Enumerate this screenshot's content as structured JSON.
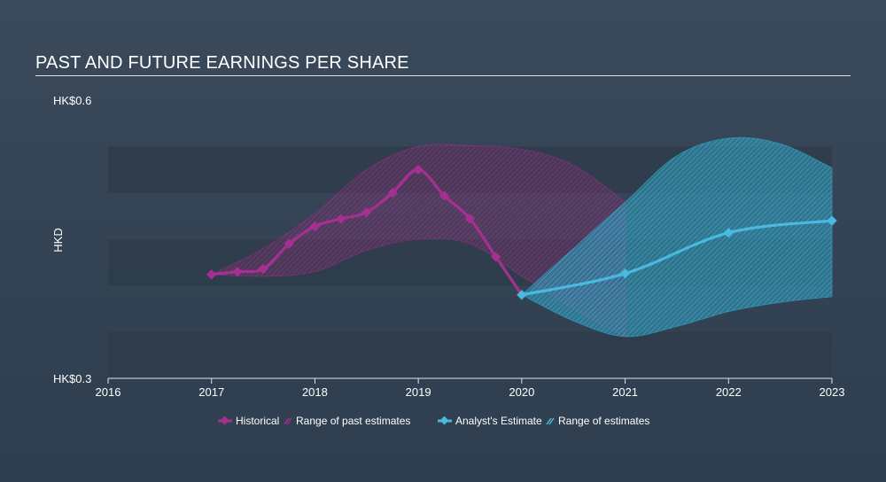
{
  "title": "PAST AND FUTURE EARNINGS PER SHARE",
  "colors": {
    "historical": "#a6308f",
    "historical_band": "#8b2f7e",
    "estimate": "#4ab9e0",
    "estimate_band": "#2f9fbd",
    "grid_band": "#2d3b49",
    "axis": "#dfe6ec"
  },
  "legend": {
    "historical": "Historical",
    "past_range": "Range of past estimates",
    "estimate": "Analyst's Estimate",
    "future_range": "Range of estimates"
  },
  "chart_data": {
    "type": "line",
    "title": "PAST AND FUTURE EARNINGS PER SHARE",
    "ylabel": "HKD",
    "y_tick_labels": [
      "HK$0.6",
      "HK$0.3"
    ],
    "ylim": [
      0.3,
      0.6
    ],
    "xlim": [
      2016,
      2023.0
    ],
    "x_tick_labels": [
      "2016",
      "2017",
      "2018",
      "2019",
      "2020",
      "2021",
      "2022",
      "2023"
    ],
    "x_ticks": [
      2016,
      2017,
      2018,
      2019,
      2020,
      2021,
      2022,
      2023
    ],
    "grid": "horizontal bands",
    "legend_position": "bottom-center",
    "series": [
      {
        "name": "Historical",
        "x": [
          2017.0,
          2017.25,
          2017.5,
          2017.75,
          2018.0,
          2018.25,
          2018.5,
          2018.75,
          2019.0,
          2019.25,
          2019.5,
          2019.75,
          2020.0
        ],
        "values": [
          0.412,
          0.415,
          0.418,
          0.445,
          0.464,
          0.472,
          0.479,
          0.5,
          0.525,
          0.497,
          0.472,
          0.431,
          0.39
        ]
      },
      {
        "name": "Analyst's Estimate",
        "x": [
          2020.0,
          2021.0,
          2022.0,
          2023.0
        ],
        "values": [
          0.39,
          0.413,
          0.457,
          0.47
        ]
      }
    ],
    "bands": [
      {
        "name": "Range of past estimates",
        "x": [
          2017.0,
          2017.5,
          2018.0,
          2018.5,
          2019.0,
          2019.5,
          2020.0,
          2020.5,
          2021.0
        ],
        "upper": [
          0.412,
          0.44,
          0.478,
          0.525,
          0.55,
          0.551,
          0.547,
          0.53,
          0.49
        ],
        "lower": [
          0.412,
          0.41,
          0.415,
          0.438,
          0.45,
          0.445,
          0.41,
          0.375,
          0.345
        ]
      },
      {
        "name": "Range of estimates",
        "x": [
          2020.0,
          2020.5,
          2021.0,
          2021.5,
          2022.0,
          2022.5,
          2023.0
        ],
        "upper": [
          0.39,
          0.44,
          0.49,
          0.54,
          0.559,
          0.553,
          0.527
        ],
        "lower": [
          0.39,
          0.362,
          0.345,
          0.356,
          0.372,
          0.382,
          0.388
        ]
      }
    ]
  }
}
